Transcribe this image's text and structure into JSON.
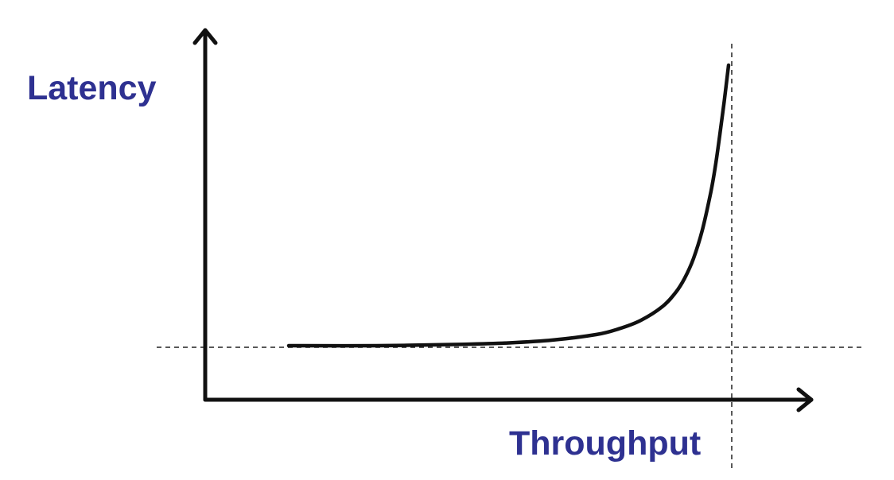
{
  "chart_data": {
    "type": "line",
    "xlabel": "Throughput",
    "ylabel": "Latency",
    "grid": false,
    "legend": "none",
    "series": [
      {
        "x": [
          0.0,
          0.2,
          0.4,
          0.5,
          0.6,
          0.7,
          0.75,
          0.8,
          0.85,
          0.88,
          0.9,
          0.92,
          0.94,
          0.96,
          0.97,
          0.98,
          0.99,
          1.0
        ],
        "y": [
          0.0,
          0.0,
          0.005,
          0.01,
          0.02,
          0.04,
          0.06,
          0.09,
          0.14,
          0.19,
          0.24,
          0.31,
          0.41,
          0.55,
          0.64,
          0.75,
          0.87,
          1.0
        ]
      }
    ],
    "reference_lines": [
      {
        "orientation": "horizontal",
        "style": "dashed",
        "meaning": "minimum latency"
      },
      {
        "orientation": "vertical",
        "style": "dashed",
        "meaning": "maximum throughput"
      }
    ],
    "colors": {
      "curve": "#111111",
      "axes": "#111111",
      "labels": "#2e3191"
    }
  }
}
